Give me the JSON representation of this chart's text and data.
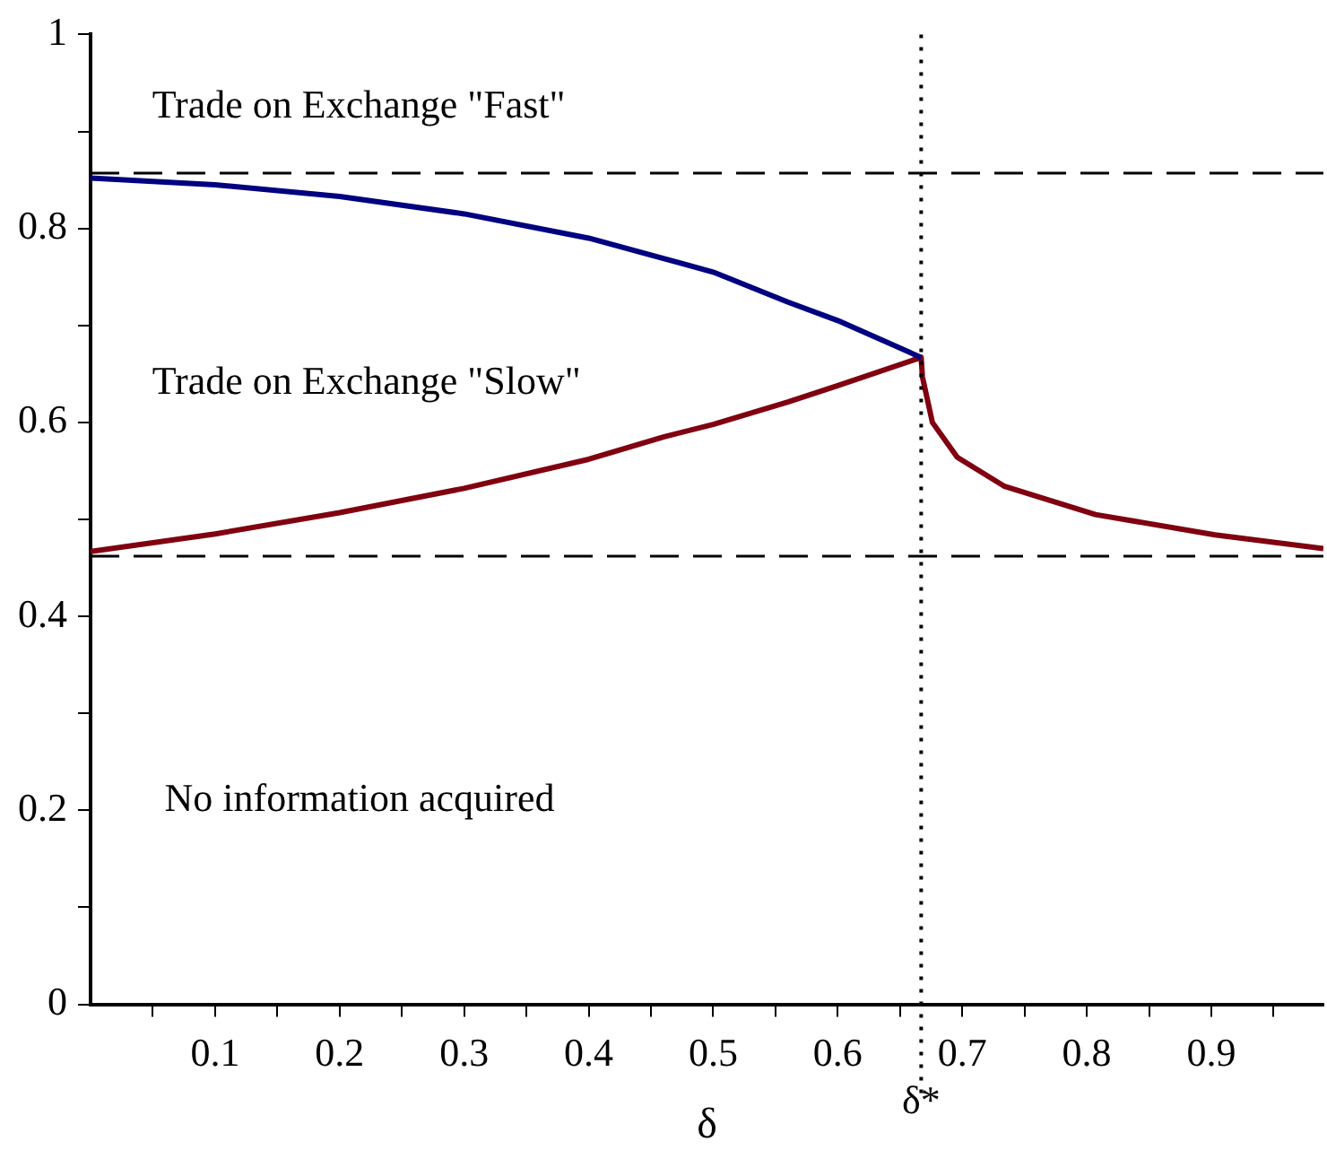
{
  "chart_data": {
    "type": "line",
    "xlabel": "δ",
    "xlim": [
      0,
      0.99
    ],
    "ylim": [
      0,
      1
    ],
    "xticks": [
      {
        "value": 0.05,
        "label": null
      },
      0.1,
      {
        "value": 0.15,
        "label": null
      },
      0.2,
      {
        "value": 0.25,
        "label": null
      },
      0.3,
      {
        "value": 0.35,
        "label": null
      },
      0.4,
      {
        "value": 0.45,
        "label": null
      },
      0.5,
      {
        "value": 0.55,
        "label": null
      },
      0.6,
      {
        "value": 0.65,
        "label": null
      },
      0.7,
      {
        "value": 0.75,
        "label": null
      },
      0.8,
      {
        "value": 0.85,
        "label": null
      },
      0.9,
      {
        "value": 0.95,
        "label": null
      }
    ],
    "yticks": [
      0,
      {
        "value": 0.1,
        "label": null
      },
      0.2,
      {
        "value": 0.3,
        "label": null
      },
      0.4,
      {
        "value": 0.5,
        "label": null
      },
      0.6,
      {
        "value": 0.7,
        "label": null
      },
      0.8,
      {
        "value": 0.9,
        "label": null
      },
      1
    ],
    "grid": false,
    "legend": false,
    "marker": "none",
    "line_style": "solid",
    "series": [
      {
        "color": "#000080",
        "x": [
          0,
          0.1,
          0.2,
          0.3,
          0.4,
          0.46,
          0.5,
          0.56,
          0.6,
          0.667
        ],
        "values": [
          0.852,
          0.845,
          0.833,
          0.815,
          0.79,
          0.769,
          0.755,
          0.724,
          0.705,
          0.667
        ]
      },
      {
        "color": "#800010",
        "x": [
          0,
          0.1,
          0.2,
          0.3,
          0.4,
          0.46,
          0.5,
          0.56,
          0.6,
          0.667,
          0.668,
          0.676,
          0.696,
          0.734,
          0.807,
          0.903,
          0.99
        ],
        "values": [
          0.467,
          0.485,
          0.507,
          0.532,
          0.562,
          0.585,
          0.598,
          0.621,
          0.638,
          0.667,
          0.647,
          0.6,
          0.564,
          0.534,
          0.505,
          0.484,
          0.47
        ]
      }
    ],
    "ref_lines": [
      {
        "axis": "y",
        "value": 0.857,
        "color": "#000000",
        "line_style": "dashed"
      },
      {
        "axis": "y",
        "value": 0.462,
        "color": "#000000",
        "line_style": "dashed"
      },
      {
        "axis": "x",
        "value": 0.667,
        "label": "δ*",
        "color": "#000000",
        "line_style": "dotted"
      }
    ],
    "annotations": [
      "Trade on Exchange \"Fast\"",
      "Trade on Exchange \"Slow\"",
      "No information acquired"
    ]
  }
}
